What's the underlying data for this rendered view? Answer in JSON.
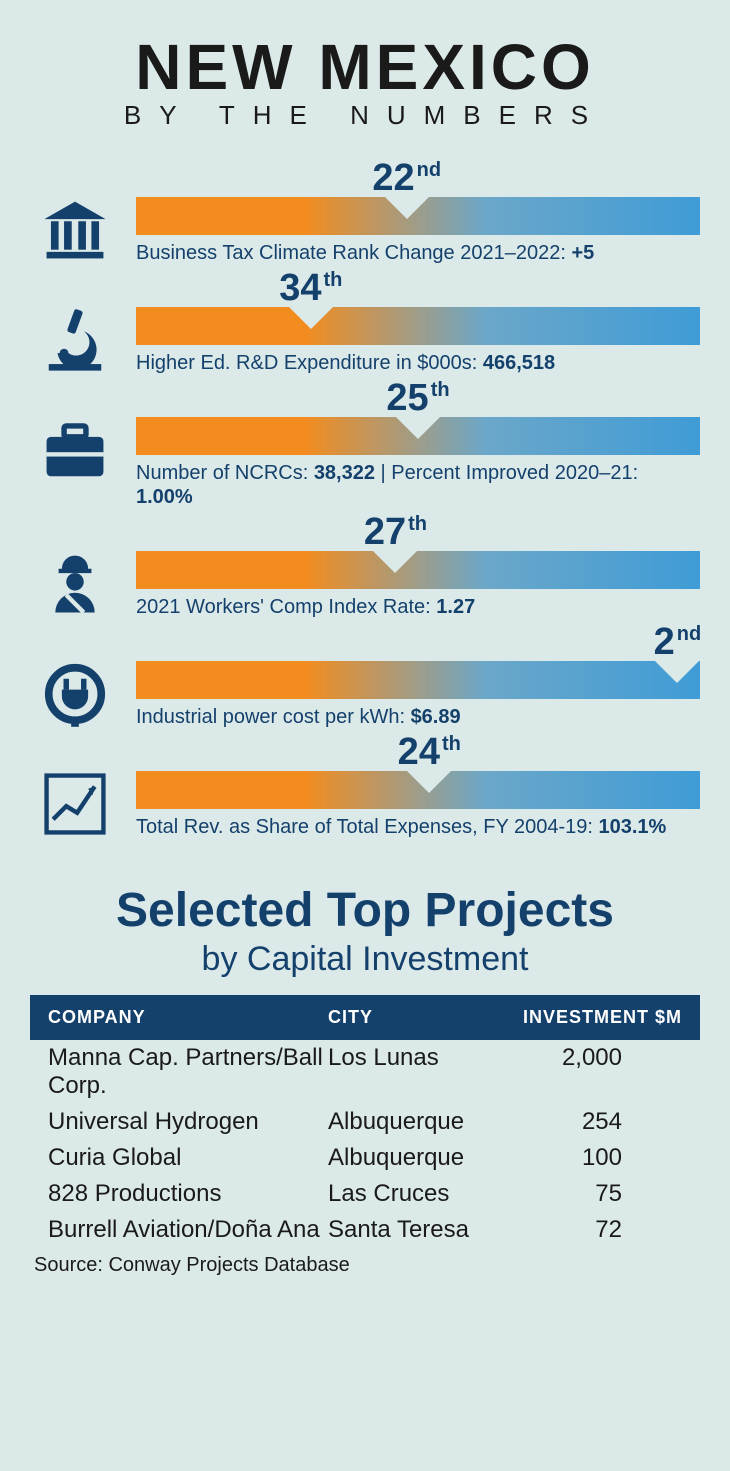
{
  "title": {
    "main": "NEW MEXICO",
    "sub": "BY THE NUMBERS"
  },
  "colors": {
    "accent": "#14416c",
    "bar_start": "#f28c1f",
    "bar_end": "#3f9cd6",
    "background": "#dce9e9"
  },
  "metrics": [
    {
      "icon": "bank",
      "rank_num": "22",
      "rank_suffix": "nd",
      "notch_pct": 48,
      "caption_prefix": "Business Tax Climate Rank Change 2021–2022: ",
      "caption_bold": "+5",
      "caption_extra": ""
    },
    {
      "icon": "microscope",
      "rank_num": "34",
      "rank_suffix": "th",
      "notch_pct": 31,
      "caption_prefix": "Higher Ed. R&D Expenditure in $000s: ",
      "caption_bold": "466,518",
      "caption_extra": ""
    },
    {
      "icon": "briefcase",
      "rank_num": "25",
      "rank_suffix": "th",
      "notch_pct": 50,
      "caption_prefix": "Number of NCRCs: ",
      "caption_bold": "38,322",
      "caption_extra": " | Percent Improved 2020–21: ",
      "caption_bold2": "1.00%"
    },
    {
      "icon": "worker",
      "rank_num": "27",
      "rank_suffix": "th",
      "notch_pct": 46,
      "caption_prefix": "2021 Workers' Comp Index Rate: ",
      "caption_bold": "1.27",
      "caption_extra": ""
    },
    {
      "icon": "plug",
      "rank_num": "2",
      "rank_suffix": "nd",
      "notch_pct": 96,
      "caption_prefix": "Industrial power cost per kWh: ",
      "caption_bold": "$6.89",
      "caption_extra": ""
    },
    {
      "icon": "chart",
      "rank_num": "24",
      "rank_suffix": "th",
      "notch_pct": 52,
      "caption_prefix": "Total Rev. as Share of Total Expenses, FY 2004-19: ",
      "caption_bold": "103.1%",
      "caption_extra": ""
    }
  ],
  "projects": {
    "title": "Selected Top Projects",
    "subtitle": "by Capital Investment",
    "columns": [
      "COMPANY",
      "CITY",
      "INVESTMENT $M"
    ],
    "rows": [
      [
        "Manna Cap. Partners/Ball Corp.",
        "Los Lunas",
        "2,000"
      ],
      [
        "Universal Hydrogen",
        "Albuquerque",
        "254"
      ],
      [
        "Curia Global",
        "Albuquerque",
        "100"
      ],
      [
        "828 Productions",
        "Las Cruces",
        "75"
      ],
      [
        "Burrell Aviation/Doña Ana",
        "Santa Teresa",
        "72"
      ]
    ],
    "source": "Source: Conway Projects Database"
  }
}
